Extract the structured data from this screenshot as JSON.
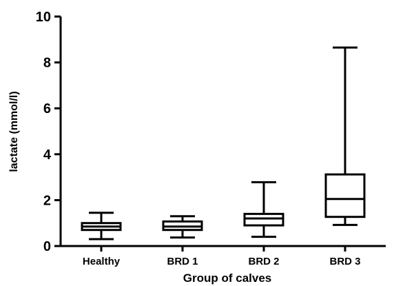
{
  "chart_data": {
    "type": "box",
    "title": "",
    "xlabel": "Group of calves",
    "ylabel": "lactate (mmol/l)",
    "ylim": [
      0,
      10
    ],
    "yticks": [
      0,
      2,
      4,
      6,
      8,
      10
    ],
    "grid": false,
    "categories": [
      "Healthy",
      "BRD 1",
      "BRD 2",
      "BRD 3"
    ],
    "boxes": [
      {
        "category": "Healthy",
        "min": 0.3,
        "q1": 0.7,
        "median": 0.85,
        "q3": 1.0,
        "max": 1.45
      },
      {
        "category": "BRD 1",
        "min": 0.37,
        "q1": 0.7,
        "median": 0.85,
        "q3": 1.07,
        "max": 1.3
      },
      {
        "category": "BRD 2",
        "min": 0.4,
        "q1": 0.9,
        "median": 1.2,
        "q3": 1.4,
        "max": 2.78
      },
      {
        "category": "BRD 3",
        "min": 0.92,
        "q1": 1.27,
        "median": 2.05,
        "q3": 3.12,
        "max": 8.65
      }
    ],
    "colors": {
      "stroke": "#000000",
      "fill": "#ffffff"
    }
  }
}
